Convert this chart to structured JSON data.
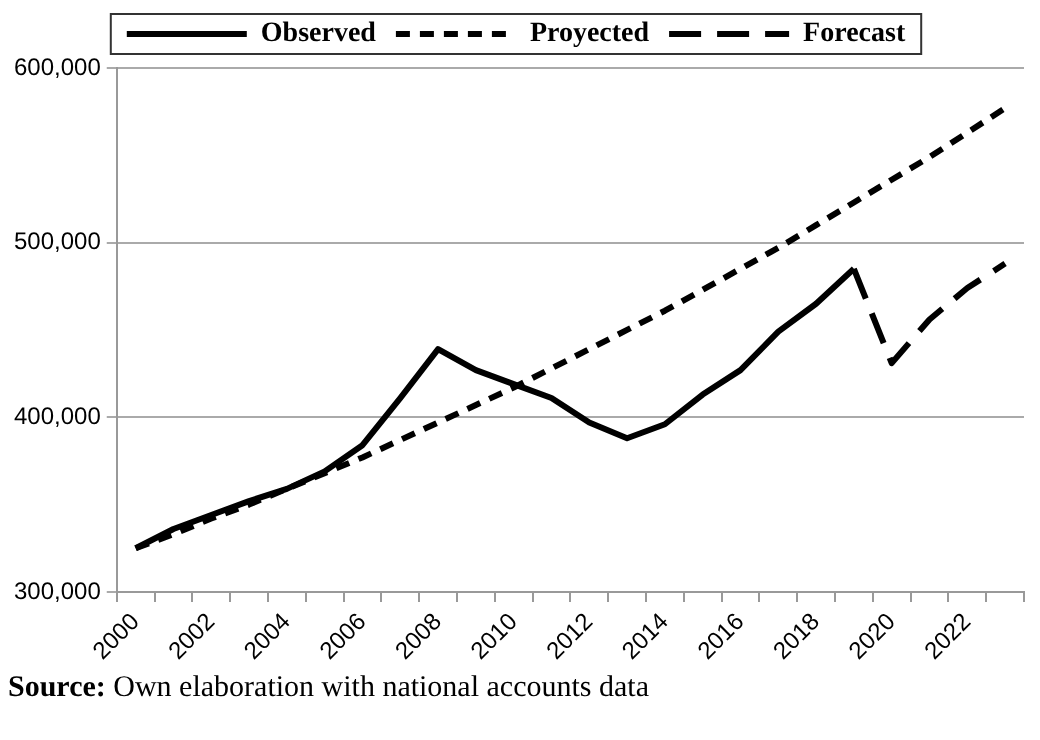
{
  "chart_data": {
    "type": "line",
    "categories": [
      "2000",
      null,
      "2002",
      null,
      "2004",
      null,
      "2006",
      null,
      "2008",
      null,
      "2010",
      null,
      "2012",
      null,
      "2014",
      null,
      "2016",
      null,
      "2018",
      null,
      "2020",
      null,
      "2022",
      null
    ],
    "series": [
      {
        "name": "Observed",
        "color": "#000000",
        "line_style": "solid",
        "values": [
          325000,
          336000,
          344000,
          352000,
          359000,
          369000,
          384000,
          411000,
          439000,
          427000,
          419000,
          411000,
          397000,
          388000,
          396000,
          413000,
          427000,
          449000,
          465000,
          485000,
          null,
          null,
          null,
          null
        ]
      },
      {
        "name": "Proyected",
        "color": "#000000",
        "line_style": "dotted",
        "values": [
          325000,
          333000,
          342000,
          350000,
          359000,
          368000,
          377000,
          387000,
          397000,
          407000,
          417000,
          428000,
          439000,
          450000,
          461000,
          473000,
          485000,
          497000,
          510000,
          523000,
          536000,
          549000,
          563000,
          577000
        ]
      },
      {
        "name": "Forecast",
        "color": "#000000",
        "line_style": "dashed",
        "values": [
          null,
          null,
          null,
          null,
          null,
          null,
          null,
          null,
          null,
          null,
          null,
          null,
          null,
          null,
          null,
          null,
          null,
          null,
          null,
          485000,
          431000,
          456000,
          474000,
          488000
        ]
      }
    ],
    "ylim": [
      300000,
      600000
    ],
    "yticks": [
      {
        "value": 300000,
        "label": "300,000"
      },
      {
        "value": 400000,
        "label": "400,000"
      },
      {
        "value": 500000,
        "label": "500,000"
      },
      {
        "value": 600000,
        "label": "600,000"
      }
    ],
    "grid": "y",
    "legend": "top",
    "marker": "none",
    "annotations": [
      "Source: Own elaboration with national accounts data"
    ]
  }
}
